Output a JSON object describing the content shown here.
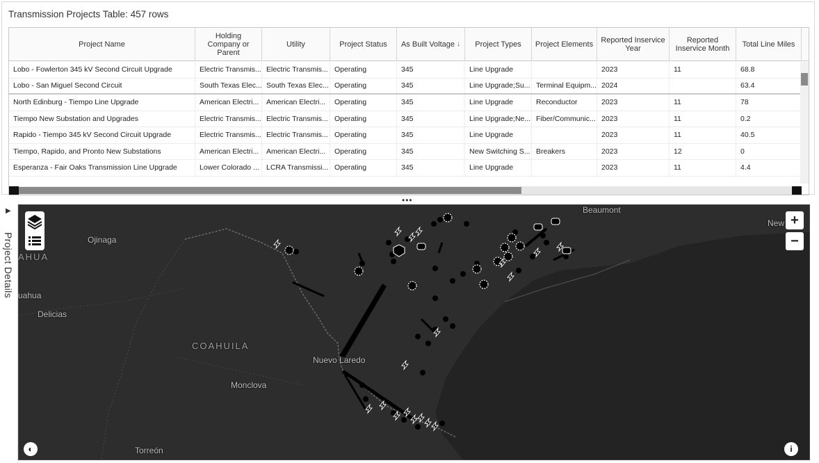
{
  "table": {
    "title": "Transmission Projects Table: 457 rows",
    "columns": [
      {
        "label": "Project Name",
        "sort": ""
      },
      {
        "label": "Holding Company or Parent",
        "sort": ""
      },
      {
        "label": "Utility",
        "sort": ""
      },
      {
        "label": "Project Status",
        "sort": ""
      },
      {
        "label": "As Built Voltage",
        "sort": "↓"
      },
      {
        "label": "Project Types",
        "sort": ""
      },
      {
        "label": "Project Elements",
        "sort": ""
      },
      {
        "label": "Reported Inservice Year",
        "sort": ""
      },
      {
        "label": "Reported Inservice Month",
        "sort": ""
      },
      {
        "label": "Total Line Miles",
        "sort": ""
      }
    ],
    "rows": [
      [
        "Lobo - Fowlerton 345 kV Second Circuit Upgrade",
        "Electric Transmis...",
        "Electric Transmis...",
        "Operating",
        "345",
        "Line Upgrade",
        "",
        "2023",
        "11",
        "68.8"
      ],
      [
        "Lobo - San Miguel Second Circuit",
        "South Texas Elec...",
        "South Texas Elec...",
        "Operating",
        "345",
        "Line Upgrade;Su...",
        "Terminal Equipm...",
        "2024",
        "",
        "63.4"
      ],
      [
        "North Edinburg - Tiempo Line Upgrade",
        "American Electri...",
        "American Electri...",
        "Operating",
        "345",
        "Line Upgrade",
        "Reconductor",
        "2023",
        "11",
        "78"
      ],
      [
        "Tiempo New Substation and Upgrades",
        "Electric Transmis...",
        "Electric Transmis...",
        "Operating",
        "345",
        "Line Upgrade;Ne...",
        "Fiber/Communic...",
        "2023",
        "11",
        "0.2"
      ],
      [
        "Rapido - Tiempo 345 kV Second Circuit Upgrade",
        "Electric Transmis...",
        "Electric Transmis...",
        "Operating",
        "345",
        "Line Upgrade",
        "",
        "2023",
        "11",
        "40.5"
      ],
      [
        "Tiempo, Rapido, and Pronto New Substations",
        "American Electri...",
        "American Electri...",
        "Operating",
        "345",
        "New Switching S...",
        "Breakers",
        "2023",
        "12",
        "0"
      ],
      [
        "Esperanza - Fair Oaks Transmission Line Upgrade",
        "Lower Colorado ...",
        "LCRA Transmissi...",
        "Operating",
        "345",
        "Line Upgrade",
        "",
        "2023",
        "11",
        "4.4"
      ]
    ]
  },
  "splitter": "•••",
  "side_panel": {
    "label": "Project Details",
    "caret": "▶"
  },
  "map": {
    "places": {
      "ojinaga": "Ojinaga",
      "ahua": "AHUA",
      "uahua": "uahua",
      "delicias": "Delicias",
      "coahuila": "COAHUILA",
      "nuevo_laredo": "Nuevo Laredo",
      "monclova": "Monclova",
      "torreon": "Torreón",
      "beaumont": "Beaumont",
      "new": "New"
    },
    "zoom_in": "+",
    "zoom_out": "−",
    "info": "i",
    "colors": {
      "background": "#2b2b2b",
      "border": "#5e5e5e",
      "marker": "#000000",
      "marker_outline": "#ffffff"
    }
  }
}
